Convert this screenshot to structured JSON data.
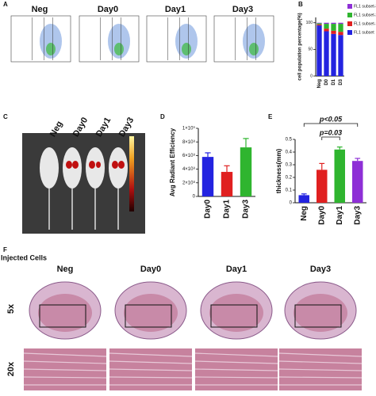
{
  "panel_letters": [
    "A",
    "B",
    "C",
    "D",
    "E",
    "F"
  ],
  "flow": {
    "titles": [
      "Neg",
      "Day0",
      "Day1",
      "Day3"
    ]
  },
  "imaging": {
    "labels": [
      "Neg",
      "Day0",
      "Day1",
      "Day3"
    ]
  },
  "histology": {
    "side_label": "Injected Cells",
    "columns": [
      "Neg",
      "Day0",
      "Day1",
      "Day3"
    ],
    "rows": [
      "5x",
      "20x"
    ]
  },
  "chart_data": [
    {
      "type": "bar",
      "stacked": true,
      "ylabel": "cell population percentage(%)",
      "categories": [
        "Neg",
        "D0",
        "D1",
        "D3"
      ],
      "series": [
        {
          "name": "FL1 subset",
          "color": "#2323e0",
          "values": [
            95,
            84,
            79,
            77
          ]
        },
        {
          "name": "FL1 subset-1",
          "color": "#e02020",
          "values": [
            2,
            5,
            6,
            6
          ]
        },
        {
          "name": "FL1 subset-2",
          "color": "#2fb52f",
          "values": [
            2,
            9,
            13,
            15
          ]
        },
        {
          "name": "FL1 subset-3",
          "color": "#8e2fd6",
          "values": [
            1,
            2,
            2,
            2
          ]
        }
      ],
      "ylim": [
        0,
        110
      ],
      "yticks": [
        0,
        50,
        100
      ],
      "legend": "right"
    },
    {
      "type": "bar",
      "ylabel": "Avg Radiant Efficiency",
      "categories": [
        "Day0",
        "Day1",
        "Day3"
      ],
      "values": [
        580000000,
        360000000,
        720000000
      ],
      "errors": [
        60000000,
        90000000,
        130000000
      ],
      "colors": [
        "#2323e0",
        "#e02020",
        "#2fb52f"
      ],
      "ylim": [
        0,
        1000000000
      ],
      "yticks": [
        0,
        {
          "value": 200000000,
          "label": "2×10⁸"
        },
        {
          "value": 400000000,
          "label": "4×10⁸"
        },
        {
          "value": 600000000,
          "label": "6×10⁸"
        },
        {
          "value": 800000000,
          "label": "8×10⁸"
        },
        {
          "value": 1000000000,
          "label": "1×10⁹"
        }
      ]
    },
    {
      "type": "bar",
      "ylabel": "thickness(mm)",
      "categories": [
        "Neg",
        "Day0",
        "Day1",
        "Day3"
      ],
      "values": [
        0.06,
        0.26,
        0.42,
        0.33
      ],
      "errors": [
        0.01,
        0.05,
        0.02,
        0.02
      ],
      "colors": [
        "#2323e0",
        "#e02020",
        "#2fb52f",
        "#8e2fd6"
      ],
      "ylim": [
        0,
        0.5
      ],
      "yticks": [
        0,
        0.1,
        0.2,
        0.3,
        0.4,
        0.5
      ],
      "annotations": [
        "p<0.05",
        "p=0.03"
      ]
    }
  ]
}
